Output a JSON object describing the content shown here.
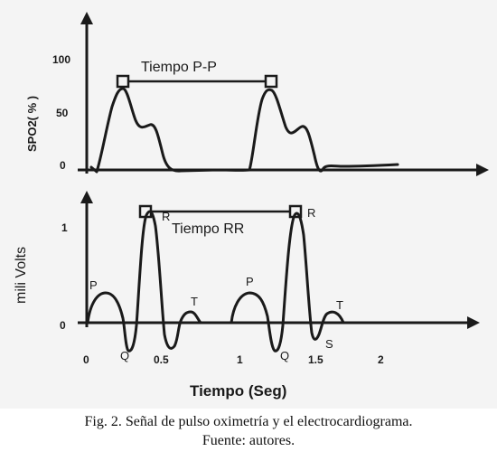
{
  "chart_data": [
    {
      "type": "line",
      "title": "",
      "ylabel": "SPO2( % )",
      "xlabel": "",
      "yticks": [
        "100",
        "50",
        "0"
      ],
      "ylim": [
        0,
        100
      ],
      "annotation": "Tiempo P-P",
      "series": [
        {
          "x": [
            0.05,
            0.1,
            0.2,
            0.3,
            0.35,
            0.4,
            0.45,
            0.5,
            0.55,
            0.6,
            0.65,
            0.7,
            0.8,
            0.9,
            1.0,
            1.1,
            1.2,
            1.25,
            1.3,
            1.35,
            1.4,
            1.45,
            1.5,
            1.55,
            1.6,
            1.65,
            1.7,
            1.8,
            2.0
          ],
          "values": [
            2,
            0,
            20,
            60,
            74,
            66,
            48,
            36,
            38,
            20,
            0,
            0,
            1,
            0,
            0,
            0,
            45,
            74,
            60,
            40,
            36,
            10,
            0,
            3,
            3,
            4,
            4,
            5,
            6
          ]
        }
      ]
    },
    {
      "type": "line",
      "title": "",
      "ylabel": "mili Volts",
      "xlabel": "Tiempo (Seg)",
      "xticks": [
        "0",
        "0.5",
        "1",
        "1.5",
        "2"
      ],
      "yticks": [
        "1",
        "0"
      ],
      "ylim": [
        -0.3,
        1.2
      ],
      "annotation": "Tiempo RR",
      "wave_labels": [
        "P",
        "Q",
        "R",
        "T",
        "P",
        "Q",
        "R",
        "S",
        "T"
      ],
      "series": [
        {
          "x": [
            0,
            0.05,
            0.12,
            0.2,
            0.25,
            0.3,
            0.34,
            0.38,
            0.42,
            0.46,
            0.5,
            0.55,
            0.6,
            0.66,
            0.7,
            0.75,
            0.8,
            0.9,
            0.95,
            1.02,
            1.1,
            1.15,
            1.2,
            1.27,
            1.32,
            1.37,
            1.42,
            1.48,
            1.52,
            1.58,
            1.64,
            1.7
          ],
          "values": [
            0,
            0.2,
            0.29,
            0.2,
            0,
            -0.26,
            0.6,
            1.12,
            0.6,
            0,
            -0.18,
            0,
            0.1,
            0.13,
            0.05,
            0,
            0,
            0,
            0.22,
            0.29,
            0.18,
            0,
            -0.26,
            0.6,
            1.12,
            0.6,
            0,
            -0.12,
            0.0,
            0.1,
            0.11,
            0
          ]
        }
      ]
    }
  ],
  "caption": {
    "line1": "Fig. 2. Señal de pulso oximetría y el electrocardiograma.",
    "line2": "Fuente: autores."
  }
}
